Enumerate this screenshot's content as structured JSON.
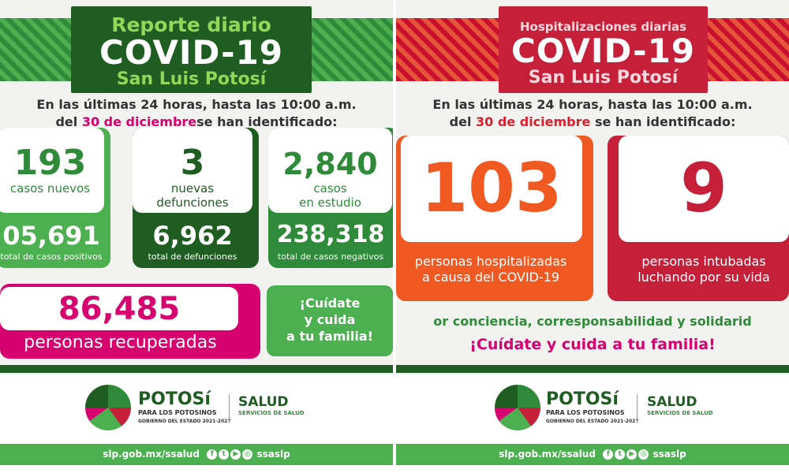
{
  "left": {
    "header": {
      "line1": "Reporte diario",
      "line2": "COVID-19",
      "line3": "San Luis Potosí"
    },
    "intro": {
      "line1": "En las últimas 24 horas, hasta las 10:00 a.m.",
      "prefix": "del",
      "date": "30 de diciembre",
      "suffix": "se han identificado:"
    },
    "new_cases": {
      "value": "193",
      "label": "casos nuevos",
      "total_value": "05,691",
      "total_label": "total de casos positivos"
    },
    "new_deaths": {
      "value": "3",
      "label_line1": "nuevas",
      "label_line2": "defunciones",
      "total_value": "6,962",
      "total_label": "total de defunciones"
    },
    "in_study": {
      "value": "2,840",
      "label_line1": "casos",
      "label_line2": "en estudio",
      "total_value": "238,318",
      "total_label": "total de casos negativos"
    },
    "recovered": {
      "value": "86,485",
      "label": "personas recuperadas"
    },
    "care_message": {
      "line1": "¡Cuídate",
      "line2": "y cuida",
      "line3": "a tu familia!"
    },
    "colors": {
      "green": "#2f8a3a",
      "dark_green": "#1f5d22",
      "pink": "#d6006e",
      "light_green": "#4caf50"
    }
  },
  "right": {
    "header": {
      "line1": "Hospitalizaciones diarias",
      "line2": "COVID-19",
      "line3": "San Luis Potosí"
    },
    "intro": {
      "line1": "En las últimas 24 horas, hasta las 10:00 a.m.",
      "prefix": "del",
      "date": "30 de diciembre",
      "suffix": "se han identificado:"
    },
    "hospitalized": {
      "value": "103",
      "label_line1": "personas hospitalizadas",
      "label_line2": "a causa del COVID-19"
    },
    "intubated": {
      "value": "9",
      "label_line1": "personas intubadas",
      "label_line2": "luchando por su vida"
    },
    "slogan1": "or conciencia, corresponsabilidad y solidarid",
    "slogan2": "¡Cuídate y cuida a tu familia!",
    "colors": {
      "orange": "#f05a22",
      "red": "#c51f3a",
      "green": "#2f8a3a",
      "pink": "#d6006e"
    }
  },
  "footer": {
    "logo_main": "POTOSí",
    "logo_sub1": "PARA LOS POTOSINOS",
    "logo_sub2": "GOBIERNO DEL ESTADO 2021-2027",
    "salud": "SALUD",
    "salud_sub": "SERVICIOS DE SALUD",
    "website": "slp.gob.mx/ssalud",
    "handle": "ssaslp"
  }
}
